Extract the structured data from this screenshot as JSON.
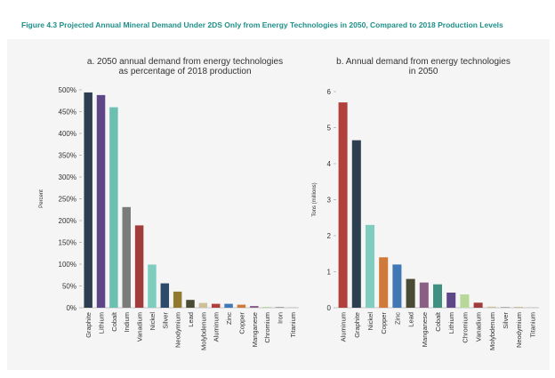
{
  "figure_title": "Figure 4.3 Projected Annual Mineral Demand Under 2DS Only from Energy Technologies in 2050, Compared to 2018 Production Levels",
  "chart_data": [
    {
      "type": "bar",
      "title": [
        "a. 2050 annual demand from energy technologies",
        "as percentage of 2018 production"
      ],
      "y_label": "Percent",
      "categories": [
        "Graphite",
        "Lithium",
        "Cobalt",
        "Indium",
        "Vanadium",
        "Nickel",
        "Silver",
        "Neodymium",
        "Lead",
        "Molybdenum",
        "Aluminum",
        "Zinc",
        "Copper",
        "Manganese",
        "Chromium",
        "Iron",
        "Titanium"
      ],
      "values": [
        494,
        488,
        460,
        231,
        189,
        99,
        56,
        37,
        18,
        11,
        9,
        9,
        7,
        4,
        2,
        2,
        1
      ],
      "colors": [
        "#2c3e4f",
        "#5e4787",
        "#6cc0b2",
        "#7b7b7b",
        "#a23b3b",
        "#7fcdbf",
        "#2e4a6a",
        "#8f7a2e",
        "#4b4a34",
        "#cdbf9a",
        "#b2403a",
        "#3f78b5",
        "#cf7a3a",
        "#8a5f86",
        "#b8d89a",
        "#a0a0a0",
        "#b0b0b0"
      ],
      "ylim": [
        0,
        500
      ],
      "yticks": [
        {
          "value": 0,
          "label": "0%"
        },
        {
          "value": 50,
          "label": "50%"
        },
        {
          "value": 100,
          "label": "100%"
        },
        {
          "value": 150,
          "label": "150%"
        },
        {
          "value": 200,
          "label": "200%"
        },
        {
          "value": 250,
          "label": "250%"
        },
        {
          "value": 300,
          "label": "300%"
        },
        {
          "value": 350,
          "label": "350%"
        },
        {
          "value": 400,
          "label": "400%"
        },
        {
          "value": 450,
          "label": "450%"
        },
        {
          "value": 500,
          "label": "500%"
        }
      ]
    },
    {
      "type": "bar",
      "title": [
        "b. Annual demand from energy technologies",
        "in 2050"
      ],
      "y_label": "Tons (millions)",
      "categories": [
        "Aluminum",
        "Graphite",
        "Nickel",
        "Copper",
        "Zinc",
        "Lead",
        "Manganese",
        "Cobalt",
        "Lithium",
        "Chromium",
        "Vanadium",
        "Molybdenum",
        "Silver",
        "Neodymium",
        "Titanium"
      ],
      "values": [
        5.7,
        4.65,
        2.3,
        1.4,
        1.2,
        0.8,
        0.7,
        0.65,
        0.42,
        0.37,
        0.14,
        0.03,
        0.02,
        0.01,
        0.01
      ],
      "colors": [
        "#b2403a",
        "#2c3e4f",
        "#7fcdbf",
        "#cf7a3a",
        "#3f78b5",
        "#4b4a34",
        "#8a5f86",
        "#3f8f83",
        "#5e4787",
        "#b8d89a",
        "#a23b3b",
        "#cdbf9a",
        "#a0a0a0",
        "#8f7a2e",
        "#b0b0b0"
      ],
      "ylim": [
        0,
        6
      ],
      "yticks": [
        0,
        1,
        2,
        3,
        4,
        5,
        6
      ]
    }
  ]
}
